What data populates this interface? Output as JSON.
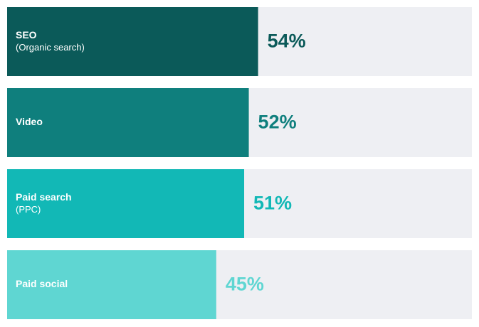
{
  "chart_data": {
    "type": "hbar",
    "categories": [
      "SEO",
      "Video",
      "Paid search",
      "Paid social"
    ],
    "category_notes": [
      "(Organic search)",
      null,
      "(PPC)",
      null
    ],
    "values": [
      54,
      52,
      51,
      45
    ],
    "value_labels": [
      "54%",
      "52%",
      "51%",
      "45%"
    ],
    "colors": [
      "#0b5a59",
      "#0f7f7d",
      "#12b8b6",
      "#5fd6d2"
    ],
    "track_color": "#eeeff3",
    "xlim": [
      0,
      100
    ]
  }
}
